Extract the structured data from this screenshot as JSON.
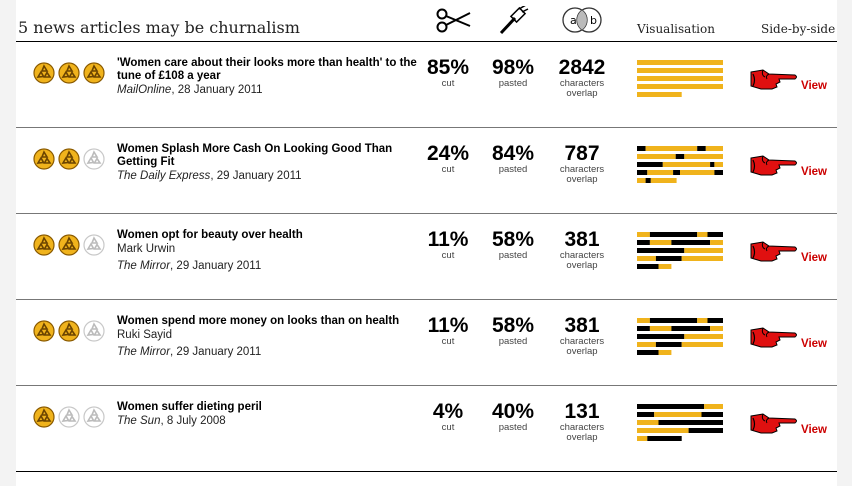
{
  "page": {
    "title": "5 news articles may be churnalism",
    "headers": {
      "visualisation": "Visualisation",
      "side_by_side": "Side-by-side"
    },
    "icons": {
      "cut": "scissors-icon",
      "pasted": "paintbrush-icon",
      "overlap": "venn-ab-icon",
      "venn_a": "a",
      "venn_b": "b"
    }
  },
  "colors": {
    "gold": "#f0b31c",
    "black": "#000000",
    "view_red": "#cc0000",
    "hand_red": "#e01010"
  },
  "articles": [
    {
      "title": "'Women care about their looks more than health' to the tune of £108 a year",
      "author": "",
      "source": "MailOnline",
      "date": ", 28 January 2011",
      "rating": 3,
      "cut": "85%",
      "cut_label": "cut",
      "pasted": "98%",
      "pasted_label": "pasted",
      "overlap": "2842",
      "overlap_label1": "characters",
      "overlap_label2": "overlap",
      "view": "View",
      "viz": [
        [
          [
            "g",
            1
          ]
        ],
        [
          [
            "g",
            1
          ]
        ],
        [
          [
            "g",
            1
          ]
        ],
        [
          [
            "g",
            1
          ]
        ],
        [
          [
            "g",
            0.52
          ]
        ]
      ]
    },
    {
      "title": "Women Splash More Cash On Looking Good Than Getting Fit",
      "author": "",
      "source": "The Daily Express",
      "date": ", 29 January 2011",
      "rating": 2,
      "cut": "24%",
      "cut_label": "cut",
      "pasted": "84%",
      "pasted_label": "pasted",
      "overlap": "787",
      "overlap_label1": "characters",
      "overlap_label2": "overlap",
      "view": "View",
      "viz": [
        [
          [
            "k",
            0.1
          ],
          [
            "g",
            0.6
          ],
          [
            "k",
            0.1
          ],
          [
            "g",
            0.2
          ]
        ],
        [
          [
            "g",
            0.45
          ],
          [
            "k",
            0.1
          ],
          [
            "g",
            0.45
          ]
        ],
        [
          [
            "k",
            0.3
          ],
          [
            "g",
            0.55
          ],
          [
            "k",
            0.05
          ],
          [
            "g",
            0.1
          ]
        ],
        [
          [
            "k",
            0.12
          ],
          [
            "g",
            0.3
          ],
          [
            "k",
            0.08
          ],
          [
            "g",
            0.4
          ],
          [
            "k",
            0.1
          ]
        ],
        [
          [
            "g",
            0.1
          ],
          [
            "k",
            0.06
          ],
          [
            "g",
            0.3
          ]
        ]
      ]
    },
    {
      "title": "Women opt for beauty over health",
      "author": "Mark Urwin",
      "source": "The Mirror",
      "date": ", 29 January 2011",
      "rating": 2,
      "cut": "11%",
      "cut_label": "cut",
      "pasted": "58%",
      "pasted_label": "pasted",
      "overlap": "381",
      "overlap_label1": "characters",
      "overlap_label2": "overlap",
      "view": "View",
      "viz": [
        [
          [
            "g",
            0.15
          ],
          [
            "k",
            0.55
          ],
          [
            "g",
            0.12
          ],
          [
            "k",
            0.18
          ]
        ],
        [
          [
            "k",
            0.15
          ],
          [
            "g",
            0.25
          ],
          [
            "k",
            0.45
          ],
          [
            "g",
            0.15
          ]
        ],
        [
          [
            "k",
            0.55
          ],
          [
            "g",
            0.45
          ]
        ],
        [
          [
            "g",
            0.22
          ],
          [
            "k",
            0.3
          ],
          [
            "g",
            0.48
          ]
        ],
        [
          [
            "k",
            0.25
          ],
          [
            "g",
            0.15
          ]
        ]
      ]
    },
    {
      "title": "Women spend more money on looks than on health",
      "author": "Ruki Sayid",
      "source": "The Mirror",
      "date": ", 29 January 2011",
      "rating": 2,
      "cut": "11%",
      "cut_label": "cut",
      "pasted": "58%",
      "pasted_label": "pasted",
      "overlap": "381",
      "overlap_label1": "characters",
      "overlap_label2": "overlap",
      "view": "View",
      "viz": [
        [
          [
            "g",
            0.15
          ],
          [
            "k",
            0.55
          ],
          [
            "g",
            0.12
          ],
          [
            "k",
            0.18
          ]
        ],
        [
          [
            "k",
            0.15
          ],
          [
            "g",
            0.25
          ],
          [
            "k",
            0.45
          ],
          [
            "g",
            0.15
          ]
        ],
        [
          [
            "k",
            0.55
          ],
          [
            "g",
            0.45
          ]
        ],
        [
          [
            "g",
            0.22
          ],
          [
            "k",
            0.3
          ],
          [
            "g",
            0.48
          ]
        ],
        [
          [
            "k",
            0.25
          ],
          [
            "g",
            0.15
          ]
        ]
      ]
    },
    {
      "title": "Women suffer dieting peril",
      "author": "",
      "source": "The Sun",
      "date": ", 8 July 2008",
      "rating": 1,
      "cut": "4%",
      "cut_label": "cut",
      "pasted": "40%",
      "pasted_label": "pasted",
      "overlap": "131",
      "overlap_label1": "characters",
      "overlap_label2": "overlap",
      "view": "View",
      "viz": [
        [
          [
            "k",
            0.78
          ],
          [
            "g",
            0.22
          ]
        ],
        [
          [
            "k",
            0.2
          ],
          [
            "g",
            0.55
          ],
          [
            "k",
            0.25
          ]
        ],
        [
          [
            "g",
            0.25
          ],
          [
            "k",
            0.75
          ]
        ],
        [
          [
            "g",
            0.6
          ],
          [
            "k",
            0.4
          ]
        ],
        [
          [
            "g",
            0.12
          ],
          [
            "k",
            0.4
          ]
        ]
      ]
    }
  ]
}
